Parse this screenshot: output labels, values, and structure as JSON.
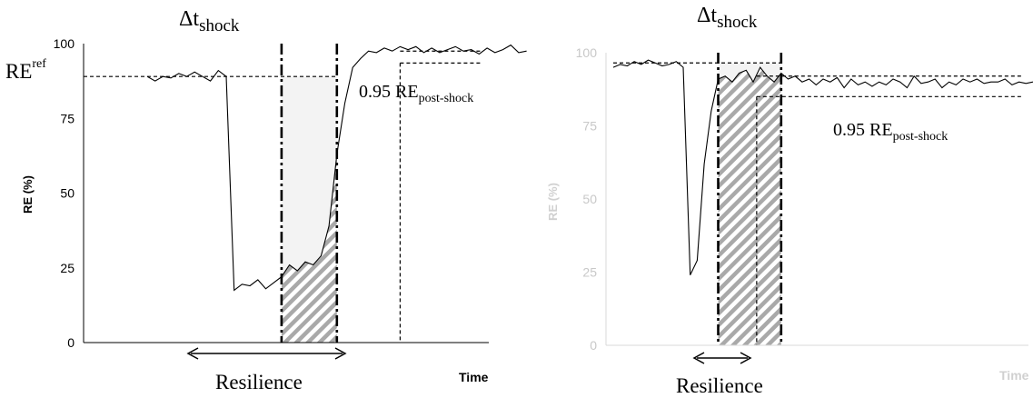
{
  "colors": {
    "panel_a_ticks": "#000000",
    "panel_b_ticks": "#c8c8c8",
    "hatch": "#a9a9a9",
    "loss_fill": "#f3f3f3"
  },
  "chart_data": [
    {
      "type": "line",
      "ylabel": "RE (%)",
      "xlabel": "Time",
      "ylim": [
        0,
        100
      ],
      "yticks": [
        "0",
        "25",
        "50",
        "75",
        "100"
      ],
      "grid": false,
      "annotations": {
        "delta_main": "Δt",
        "delta_sub": "shock",
        "ref_main": "RE",
        "ref_sup": "ref",
        "post_main": "0.95 RE",
        "post_sub": "post-shock",
        "resilience": "Resilience"
      },
      "reference_level": 89,
      "post_shock_level": 97.5,
      "post_shock_threshold": 93.5,
      "shock_window": [
        17,
        24
      ],
      "recovery_time": 32,
      "series": [
        {
          "x": [
            0,
            1,
            2,
            3,
            4,
            5,
            6,
            7,
            8,
            9,
            10,
            11,
            12,
            13,
            14,
            15,
            16,
            17,
            18,
            19,
            20,
            21,
            22,
            23,
            24,
            25,
            26,
            27,
            28,
            29,
            30,
            31,
            32,
            33,
            34,
            35,
            36,
            37,
            38,
            39,
            40,
            41,
            42,
            43,
            44,
            45,
            46,
            47,
            48
          ],
          "values": [
            89,
            87.5,
            89,
            88.5,
            90,
            89,
            90.5,
            89,
            87.5,
            91,
            89,
            17.5,
            19.5,
            19,
            21,
            18,
            20,
            22,
            26,
            24,
            27,
            26,
            29,
            39,
            63,
            80,
            92,
            95,
            97.5,
            97,
            98.5,
            97.5,
            99,
            98,
            99,
            97,
            98.5,
            97,
            98,
            99,
            97.5,
            98,
            96.5,
            98.5,
            97,
            98,
            99.5,
            97,
            97.5
          ]
        }
      ]
    },
    {
      "type": "line",
      "ylabel": "RE (%)",
      "xlabel": "Time",
      "ylim": [
        0,
        100
      ],
      "yticks": [
        "0",
        "25",
        "50",
        "75",
        "100"
      ],
      "grid": false,
      "annotations": {
        "delta_main": "Δt",
        "delta_sub": "shock",
        "post_main": "0.95 RE",
        "post_sub": "post-shock",
        "resilience": "Resilience"
      },
      "reference_level": 96.5,
      "post_shock_level": 92,
      "post_shock_threshold": 85,
      "shock_window": [
        15,
        24
      ],
      "recovery_time": 20.5,
      "series": [
        {
          "x": [
            0,
            1,
            2,
            3,
            4,
            5,
            6,
            7,
            8,
            9,
            10,
            11,
            12,
            13,
            14,
            15,
            16,
            17,
            18,
            19,
            20,
            21,
            22,
            23,
            24,
            25,
            26,
            27,
            28,
            29,
            30,
            31,
            32,
            33,
            34,
            35,
            36,
            37,
            38,
            39,
            40,
            41,
            42,
            43,
            44,
            45,
            46,
            47,
            48,
            49,
            50,
            51,
            52,
            53,
            54,
            55,
            56,
            57,
            58,
            59,
            60
          ],
          "values": [
            95,
            96,
            95.5,
            97,
            96,
            97.5,
            96.5,
            95.5,
            96,
            97,
            95,
            24,
            29,
            62,
            80,
            91,
            92,
            90,
            93,
            94,
            90,
            95,
            92,
            90,
            93,
            91,
            92,
            90,
            91,
            89,
            91,
            90,
            91.5,
            88,
            91,
            89,
            90,
            88.5,
            90,
            89,
            91,
            90,
            88,
            92,
            89.5,
            90,
            91,
            88,
            90,
            89,
            91,
            90,
            91,
            89.5,
            90,
            90,
            91,
            89,
            90,
            89.5,
            90
          ]
        }
      ]
    }
  ]
}
